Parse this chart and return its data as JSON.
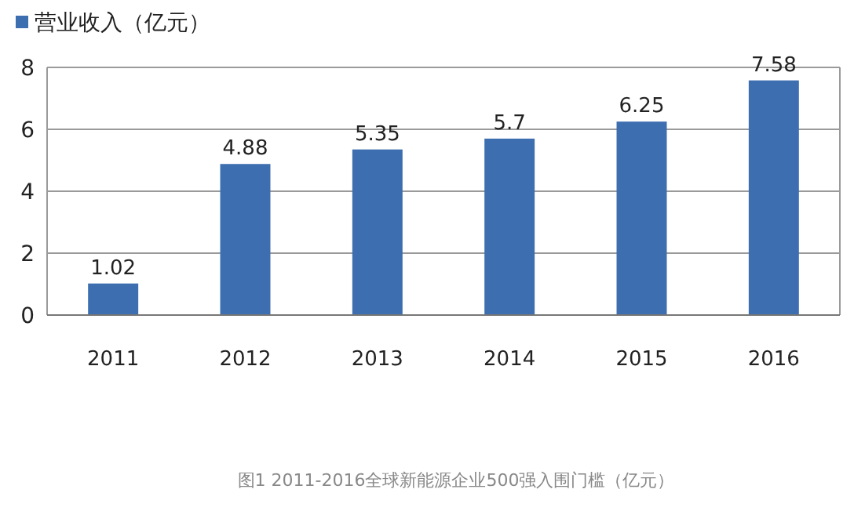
{
  "chart_data": {
    "type": "bar",
    "categories": [
      "2011",
      "2012",
      "2013",
      "2014",
      "2015",
      "2016"
    ],
    "series": [
      {
        "name": "营业收入（亿元）",
        "color": "#3d6fb0",
        "values": [
          1.02,
          4.88,
          5.35,
          5.7,
          6.25,
          7.58
        ]
      }
    ],
    "ylim": [
      0,
      8
    ],
    "yticks": [
      0,
      2,
      4,
      6,
      8
    ],
    "grid": "y",
    "legend": "top left",
    "data_labels": true,
    "annotations": [
      "图1 2011-2016全球新能源企业500强入围门槛（亿元）"
    ]
  }
}
